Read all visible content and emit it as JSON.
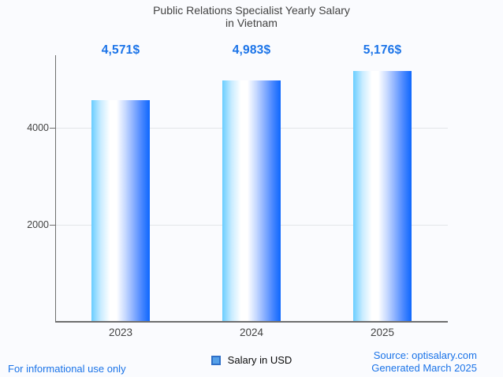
{
  "title": {
    "line1": "Public Relations Specialist Yearly Salary",
    "line2": "in Vietnam"
  },
  "chart_data": {
    "type": "bar",
    "title": "Public Relations Specialist Yearly Salary in Vietnam",
    "categories": [
      "2023",
      "2024",
      "2025"
    ],
    "values": [
      4571,
      4983,
      5176
    ],
    "value_labels": [
      "4,571$",
      "4,983$",
      "5,176$"
    ],
    "series": [
      {
        "name": "Salary in USD",
        "values": [
          4571,
          4983,
          5176
        ]
      }
    ],
    "xlabel": "",
    "ylabel": "",
    "y_ticks": [
      2000,
      4000
    ],
    "ylim": [
      0,
      5500
    ],
    "grid": true,
    "legend_position": "bottom",
    "bar_gradient": [
      "#69cdff",
      "#ffffff",
      "#0d67fd"
    ]
  },
  "legend": {
    "label": "Salary in USD",
    "swatch_color": "#55a0e8"
  },
  "footer": {
    "left": "For informational use only",
    "source": "Source: optisalary.com",
    "generated": "Generated March 2025"
  },
  "colors": {
    "accent_blue": "#1a73e8",
    "text_gray": "#424242",
    "axis": "#6e6e6e",
    "gridline": "#e2e5e9",
    "background": "#fafbfe"
  }
}
